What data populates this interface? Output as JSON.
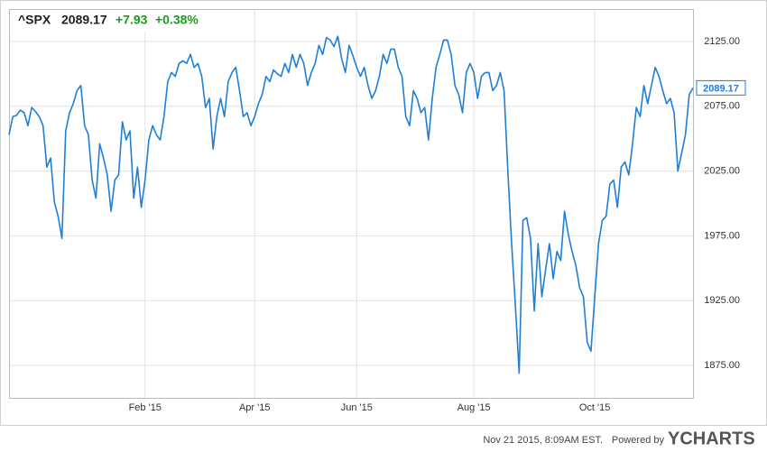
{
  "chart_data": {
    "type": "line",
    "title": "^SPX",
    "price": "2089.17",
    "change": "+7.93",
    "change_percent": "+0.38%",
    "footer": "Nov 21 2015, 8:09AM EST.",
    "powered_by": "Powered by",
    "brand": "YCHARTS",
    "grid": true,
    "ylim": [
      1850,
      2150
    ],
    "yticks": [
      {
        "value": 1875,
        "label": "1875.00"
      },
      {
        "value": 1925,
        "label": "1925.00"
      },
      {
        "value": 1975,
        "label": "1975.00"
      },
      {
        "value": 2025,
        "label": "2025.00"
      },
      {
        "value": 2075,
        "label": "2075.00"
      },
      {
        "value": 2125,
        "label": "2125.00"
      }
    ],
    "categories": [
      null,
      null,
      null,
      null,
      null,
      null,
      null,
      null,
      null,
      null,
      null,
      null,
      null,
      null,
      null,
      null,
      null,
      null,
      null,
      null,
      null,
      null,
      null,
      null,
      null,
      null,
      null,
      null,
      null,
      null,
      null,
      null,
      null,
      null,
      null,
      null,
      "Feb '15",
      null,
      null,
      null,
      null,
      null,
      null,
      null,
      null,
      null,
      null,
      null,
      null,
      null,
      null,
      null,
      null,
      null,
      null,
      null,
      null,
      null,
      null,
      null,
      null,
      null,
      null,
      null,
      null,
      "Apr '15",
      null,
      null,
      null,
      null,
      null,
      null,
      null,
      null,
      null,
      null,
      null,
      null,
      null,
      null,
      null,
      null,
      null,
      null,
      null,
      null,
      null,
      null,
      null,
      null,
      null,
      null,
      "Jun '15",
      null,
      null,
      null,
      null,
      null,
      null,
      null,
      null,
      null,
      null,
      null,
      null,
      null,
      null,
      null,
      null,
      null,
      null,
      null,
      null,
      null,
      null,
      null,
      null,
      null,
      null,
      null,
      null,
      null,
      null,
      "Aug '15",
      null,
      null,
      null,
      null,
      null,
      null,
      null,
      null,
      null,
      null,
      null,
      null,
      null,
      null,
      null,
      null,
      null,
      null,
      null,
      null,
      null,
      null,
      null,
      null,
      null,
      null,
      null,
      null,
      null,
      null,
      null,
      "Oct '15",
      null,
      null,
      null,
      null,
      null,
      null,
      null,
      null,
      null,
      null,
      null,
      null,
      null,
      null,
      null,
      null,
      null,
      null,
      null,
      null,
      null,
      null,
      null,
      null,
      null,
      null
    ],
    "series": [
      {
        "name": "^SPX",
        "color": "#1f7fd6",
        "values": [
          2053,
          2067,
          2068,
          2072,
          2070,
          2060,
          2074,
          2071,
          2067,
          2060,
          2028,
          2035,
          2001,
          1990,
          1973,
          2056,
          2070,
          2077,
          2087,
          2091,
          2060,
          2053,
          2018,
          2004,
          2046,
          2035,
          2022,
          1994,
          2018,
          2022,
          2063,
          2049,
          2056,
          2004,
          2028,
          1997,
          2018,
          2049,
          2060,
          2053,
          2049,
          2067,
          2094,
          2101,
          2098,
          2108,
          2110,
          2108,
          2115,
          2105,
          2108,
          2098,
          2074,
          2081,
          2042,
          2067,
          2081,
          2067,
          2094,
          2101,
          2105,
          2087,
          2067,
          2070,
          2060,
          2067,
          2077,
          2084,
          2098,
          2094,
          2103,
          2100,
          2098,
          2108,
          2101,
          2115,
          2105,
          2115,
          2108,
          2091,
          2101,
          2108,
          2122,
          2115,
          2128,
          2126,
          2121,
          2129,
          2112,
          2101,
          2122,
          2114,
          2105,
          2098,
          2105,
          2091,
          2081,
          2087,
          2098,
          2115,
          2108,
          2119,
          2119,
          2105,
          2098,
          2067,
          2060,
          2087,
          2081,
          2070,
          2074,
          2049,
          2081,
          2105,
          2115,
          2126,
          2126,
          2115,
          2091,
          2084,
          2070,
          2101,
          2108,
          2101,
          2081,
          2098,
          2101,
          2101,
          2087,
          2091,
          2101,
          2087,
          2025,
          1969,
          1921,
          1869,
          1987,
          1989,
          1973,
          1917,
          1969,
          1928,
          1949,
          1969,
          1942,
          1963,
          1956,
          1994,
          1976,
          1963,
          1952,
          1935,
          1928,
          1893,
          1886,
          1928,
          1969,
          1987,
          1990,
          2015,
          2018,
          1997,
          2028,
          2032,
          2022,
          2046,
          2074,
          2067,
          2091,
          2077,
          2091,
          2105,
          2098,
          2087,
          2077,
          2081,
          2070,
          2025,
          2039,
          2053,
          2084,
          2089.17
        ]
      }
    ]
  }
}
